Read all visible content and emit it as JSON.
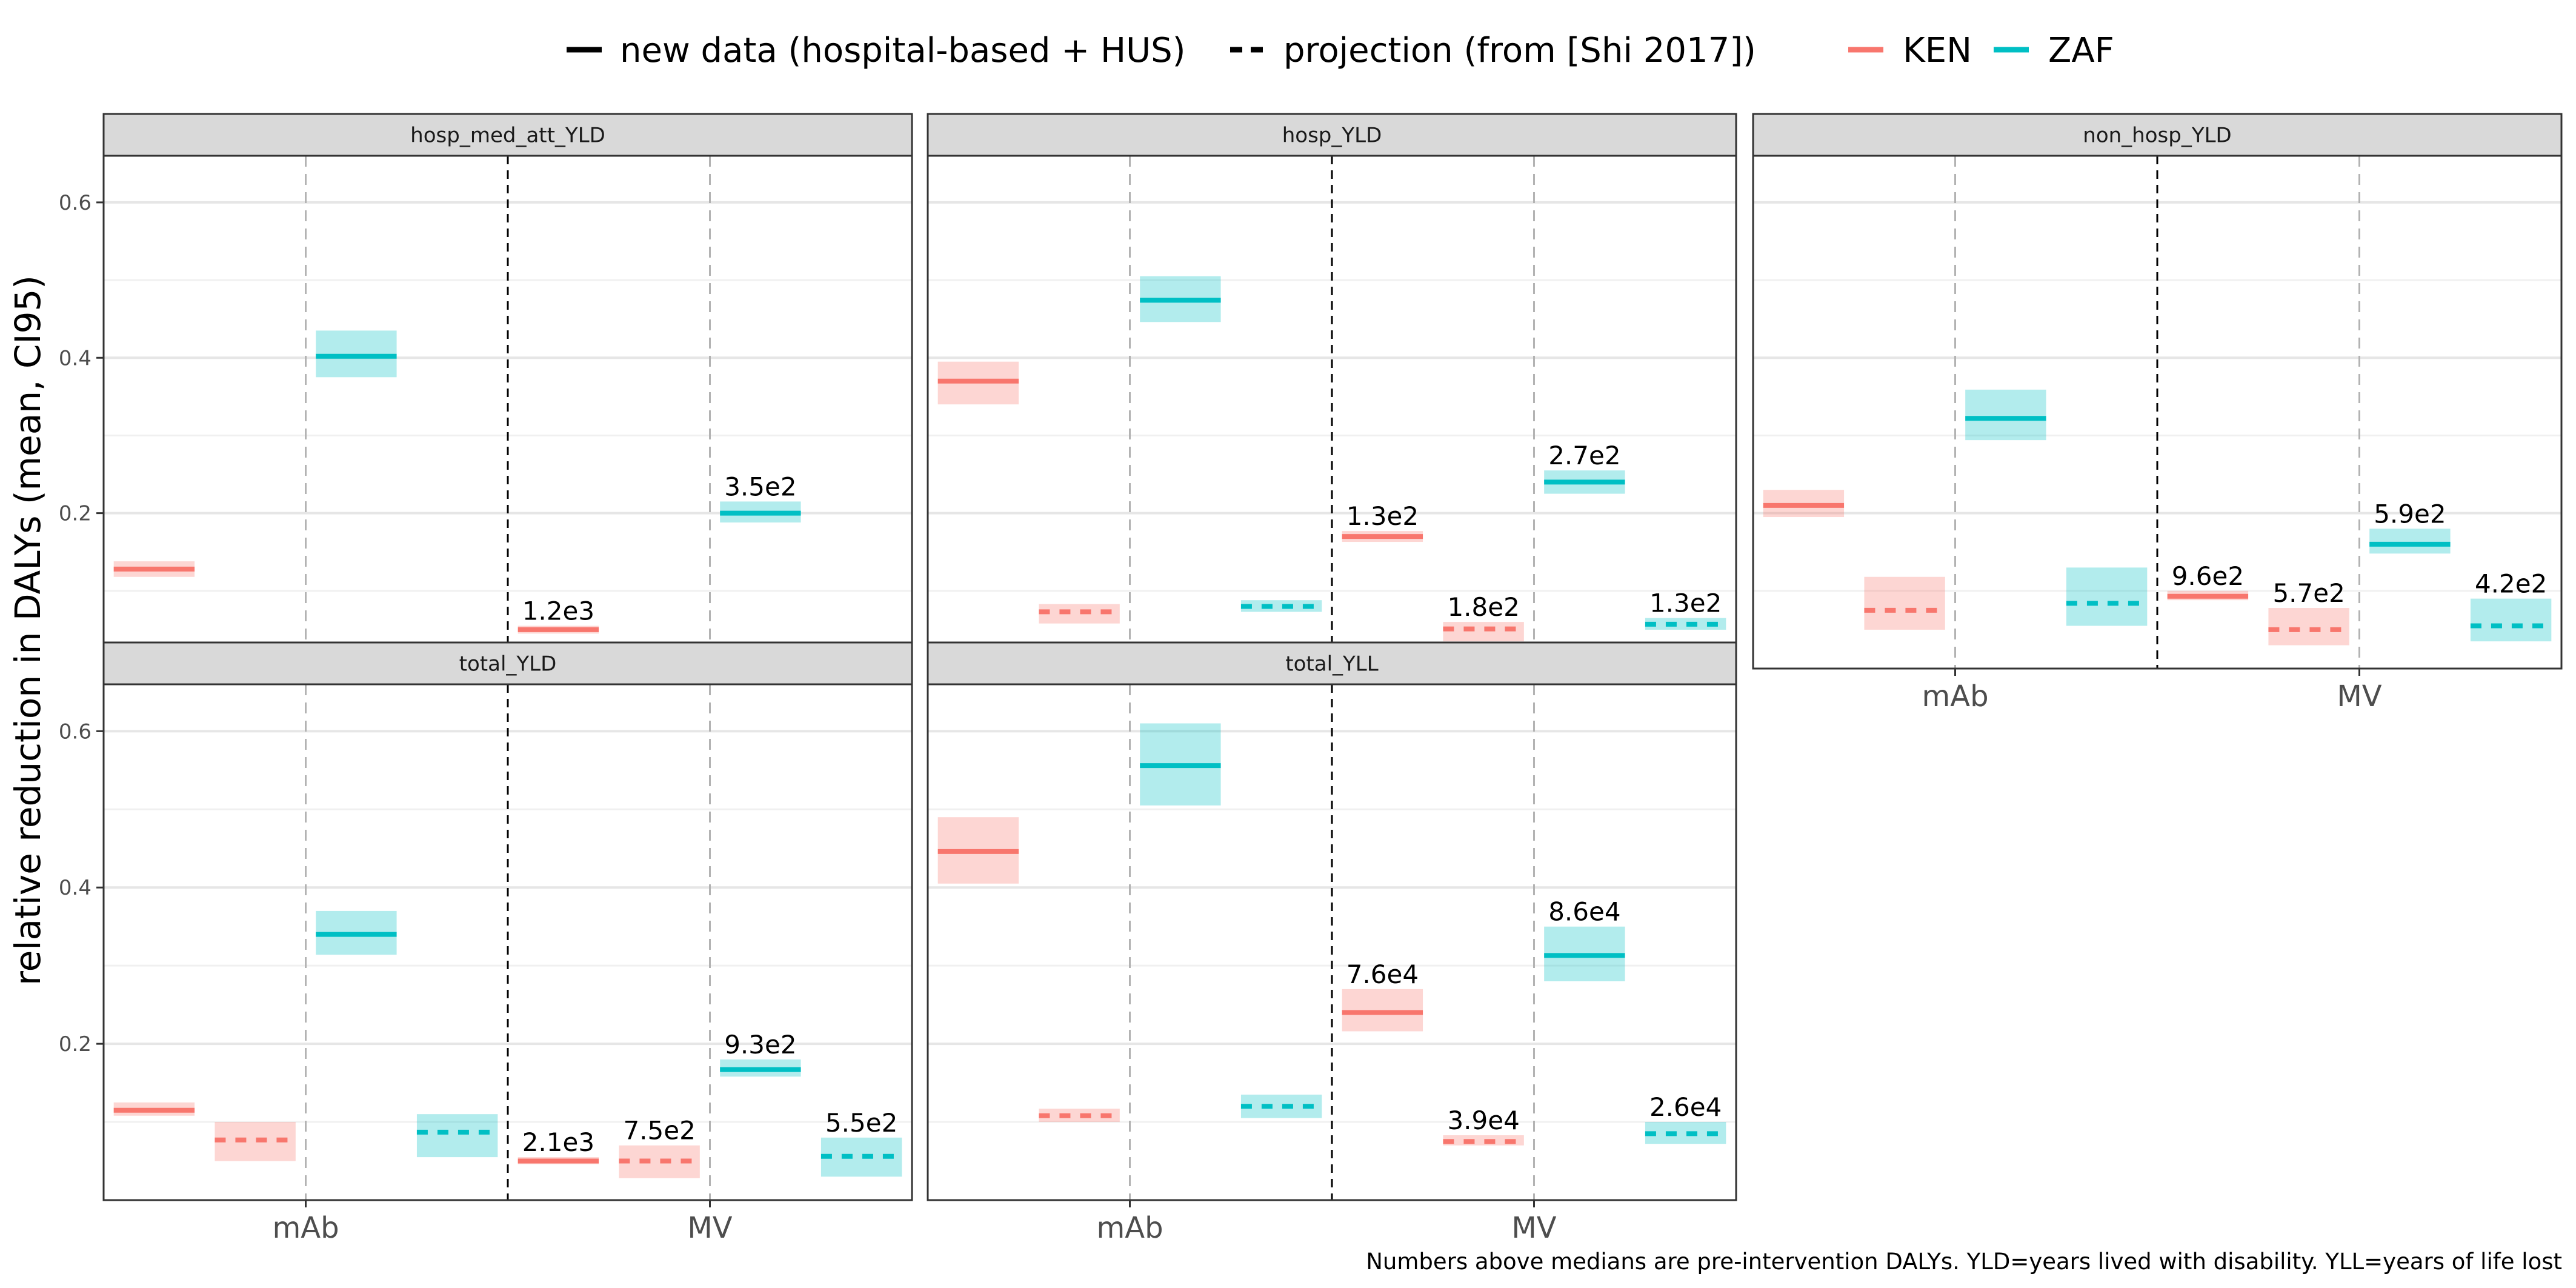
{
  "chart_data": {
    "type": "crossbar",
    "ylabel": "relative reduction in DALYs (mean, CI95)",
    "caption": "Numbers above medians are pre-intervention DALYs. YLD=years lived with disability. YLL=years of life lost",
    "ylim": [
      0,
      0.66
    ],
    "yticks": [
      0.2,
      0.4,
      0.6
    ],
    "yticklabels": [
      "0.2",
      "0.4",
      "0.6"
    ],
    "categories": [
      "mAb",
      "MV"
    ],
    "countries": [
      "KEN",
      "ZAF"
    ],
    "colors": {
      "KEN": "#F8766D",
      "ZAF": "#00BFC4"
    },
    "legend": {
      "position": "top",
      "linetypes": [
        {
          "style": "solid",
          "label": "new data (hospital-based + HUS)"
        },
        {
          "style": "dashed",
          "label": "projection (from [Shi 2017])"
        }
      ],
      "colors": [
        {
          "country": "KEN",
          "label": "KEN"
        },
        {
          "country": "ZAF",
          "label": "ZAF"
        }
      ]
    },
    "facets": [
      {
        "name": "hosp_med_att_YLD",
        "series": [
          {
            "category": "mAb",
            "country": "KEN",
            "source": "new",
            "mean": 0.128,
            "lo": 0.118,
            "hi": 0.138
          },
          {
            "category": "mAb",
            "country": "ZAF",
            "source": "new",
            "mean": 0.402,
            "lo": 0.375,
            "hi": 0.435
          },
          {
            "category": "MV",
            "country": "KEN",
            "source": "new",
            "mean": 0.05,
            "lo": 0.045,
            "hi": 0.055,
            "label": "1.2e3"
          },
          {
            "category": "MV",
            "country": "ZAF",
            "source": "new",
            "mean": 0.2,
            "lo": 0.188,
            "hi": 0.215,
            "label": "3.5e2"
          }
        ]
      },
      {
        "name": "hosp_YLD",
        "series": [
          {
            "category": "mAb",
            "country": "KEN",
            "source": "new",
            "mean": 0.37,
            "lo": 0.34,
            "hi": 0.395
          },
          {
            "category": "mAb",
            "country": "KEN",
            "source": "projection",
            "mean": 0.073,
            "lo": 0.058,
            "hi": 0.083
          },
          {
            "category": "mAb",
            "country": "ZAF",
            "source": "new",
            "mean": 0.474,
            "lo": 0.446,
            "hi": 0.505
          },
          {
            "category": "mAb",
            "country": "ZAF",
            "source": "projection",
            "mean": 0.08,
            "lo": 0.073,
            "hi": 0.088
          },
          {
            "category": "MV",
            "country": "KEN",
            "source": "new",
            "mean": 0.17,
            "lo": 0.163,
            "hi": 0.177,
            "label": "1.3e2"
          },
          {
            "category": "MV",
            "country": "KEN",
            "source": "projection",
            "mean": 0.051,
            "lo": 0.035,
            "hi": 0.06,
            "label": "1.8e2"
          },
          {
            "category": "MV",
            "country": "ZAF",
            "source": "new",
            "mean": 0.24,
            "lo": 0.225,
            "hi": 0.255,
            "label": "2.7e2"
          },
          {
            "category": "MV",
            "country": "ZAF",
            "source": "projection",
            "mean": 0.057,
            "lo": 0.05,
            "hi": 0.065,
            "label": "1.3e2"
          }
        ]
      },
      {
        "name": "non_hosp_YLD",
        "series": [
          {
            "category": "mAb",
            "country": "KEN",
            "source": "new",
            "mean": 0.21,
            "lo": 0.195,
            "hi": 0.23
          },
          {
            "category": "mAb",
            "country": "KEN",
            "source": "projection",
            "mean": 0.075,
            "lo": 0.05,
            "hi": 0.118
          },
          {
            "category": "mAb",
            "country": "ZAF",
            "source": "new",
            "mean": 0.322,
            "lo": 0.294,
            "hi": 0.359
          },
          {
            "category": "mAb",
            "country": "ZAF",
            "source": "projection",
            "mean": 0.084,
            "lo": 0.055,
            "hi": 0.13
          },
          {
            "category": "MV",
            "country": "KEN",
            "source": "new",
            "mean": 0.093,
            "lo": 0.088,
            "hi": 0.1,
            "label": "9.6e2"
          },
          {
            "category": "MV",
            "country": "KEN",
            "source": "projection",
            "mean": 0.05,
            "lo": 0.03,
            "hi": 0.078,
            "label": "5.7e2"
          },
          {
            "category": "MV",
            "country": "ZAF",
            "source": "new",
            "mean": 0.16,
            "lo": 0.148,
            "hi": 0.18,
            "label": "5.9e2"
          },
          {
            "category": "MV",
            "country": "ZAF",
            "source": "projection",
            "mean": 0.055,
            "lo": 0.035,
            "hi": 0.09,
            "label": "4.2e2"
          }
        ]
      },
      {
        "name": "total_YLD",
        "series": [
          {
            "category": "mAb",
            "country": "KEN",
            "source": "new",
            "mean": 0.115,
            "lo": 0.108,
            "hi": 0.125
          },
          {
            "category": "mAb",
            "country": "KEN",
            "source": "projection",
            "mean": 0.077,
            "lo": 0.05,
            "hi": 0.1
          },
          {
            "category": "mAb",
            "country": "ZAF",
            "source": "new",
            "mean": 0.34,
            "lo": 0.314,
            "hi": 0.37
          },
          {
            "category": "mAb",
            "country": "ZAF",
            "source": "projection",
            "mean": 0.087,
            "lo": 0.055,
            "hi": 0.11
          },
          {
            "category": "MV",
            "country": "KEN",
            "source": "new",
            "mean": 0.05,
            "lo": 0.046,
            "hi": 0.055,
            "label": "2.1e3"
          },
          {
            "category": "MV",
            "country": "KEN",
            "source": "projection",
            "mean": 0.05,
            "lo": 0.028,
            "hi": 0.07,
            "label": "7.5e2"
          },
          {
            "category": "MV",
            "country": "ZAF",
            "source": "new",
            "mean": 0.167,
            "lo": 0.158,
            "hi": 0.18,
            "label": "9.3e2"
          },
          {
            "category": "MV",
            "country": "ZAF",
            "source": "projection",
            "mean": 0.056,
            "lo": 0.03,
            "hi": 0.08,
            "label": "5.5e2"
          }
        ]
      },
      {
        "name": "total_YLL",
        "series": [
          {
            "category": "mAb",
            "country": "KEN",
            "source": "new",
            "mean": 0.446,
            "lo": 0.405,
            "hi": 0.49
          },
          {
            "category": "mAb",
            "country": "KEN",
            "source": "projection",
            "mean": 0.108,
            "lo": 0.1,
            "hi": 0.117
          },
          {
            "category": "mAb",
            "country": "ZAF",
            "source": "new",
            "mean": 0.556,
            "lo": 0.505,
            "hi": 0.61
          },
          {
            "category": "mAb",
            "country": "ZAF",
            "source": "projection",
            "mean": 0.12,
            "lo": 0.105,
            "hi": 0.135
          },
          {
            "category": "MV",
            "country": "KEN",
            "source": "new",
            "mean": 0.24,
            "lo": 0.216,
            "hi": 0.27,
            "label": "7.6e4"
          },
          {
            "category": "MV",
            "country": "KEN",
            "source": "projection",
            "mean": 0.075,
            "lo": 0.07,
            "hi": 0.083,
            "label": "3.9e4"
          },
          {
            "category": "MV",
            "country": "ZAF",
            "source": "new",
            "mean": 0.313,
            "lo": 0.28,
            "hi": 0.35,
            "label": "8.6e4"
          },
          {
            "category": "MV",
            "country": "ZAF",
            "source": "projection",
            "mean": 0.085,
            "lo": 0.072,
            "hi": 0.1,
            "label": "2.6e4"
          }
        ]
      }
    ]
  }
}
